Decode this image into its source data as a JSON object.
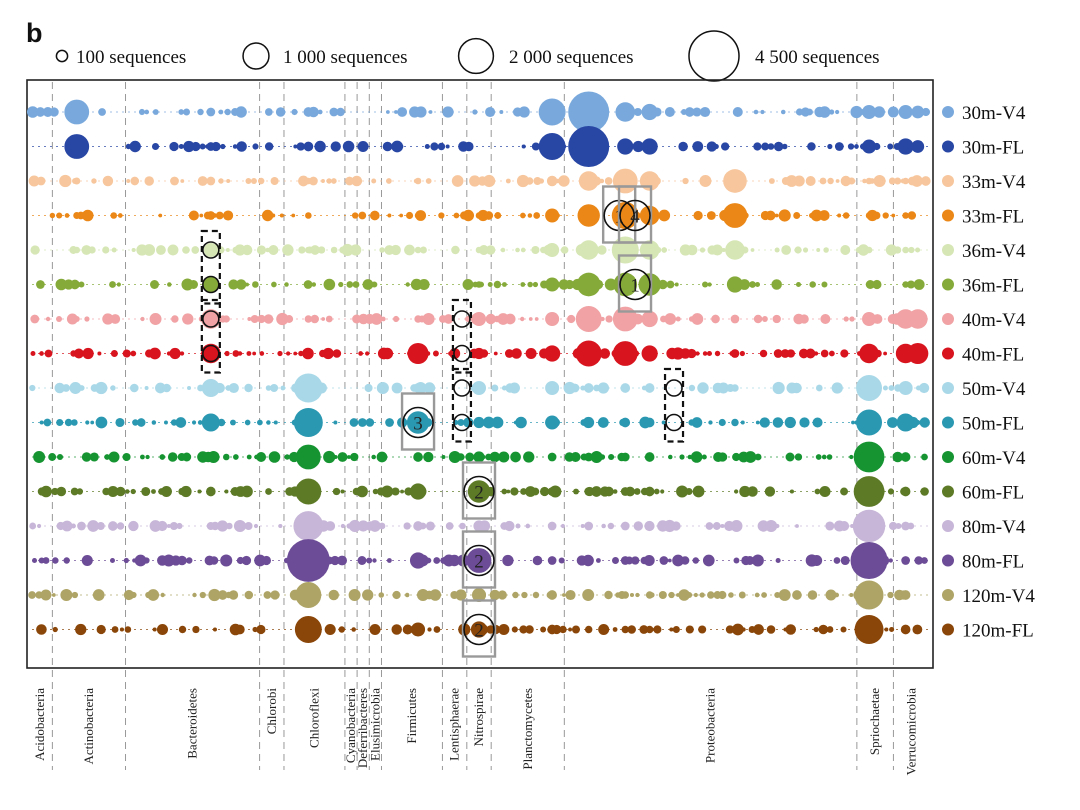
{
  "panel_label": "b",
  "size_legend": [
    {
      "label": "100 sequences",
      "count": 100
    },
    {
      "label": "1 000 sequences",
      "count": 1000
    },
    {
      "label": "2 000 sequences",
      "count": 2000
    },
    {
      "label": "4 500 sequences",
      "count": 4500
    }
  ],
  "chart_data": {
    "type": "scatter",
    "subtype": "bubble",
    "title": "",
    "size_unit": "sequences per OTU",
    "samples": [
      {
        "label": "30m-V4",
        "color": "#79a9dc"
      },
      {
        "label": "30m-FL",
        "color": "#2846a4"
      },
      {
        "label": "33m-V4",
        "color": "#f7c69c"
      },
      {
        "label": "33m-FL",
        "color": "#ea8716"
      },
      {
        "label": "36m-V4",
        "color": "#d6e6b4"
      },
      {
        "label": "36m-FL",
        "color": "#86aa3a"
      },
      {
        "label": "40m-V4",
        "color": "#f0a2a4"
      },
      {
        "label": "40m-FL",
        "color": "#d8141e"
      },
      {
        "label": "50m-V4",
        "color": "#a9d8e8"
      },
      {
        "label": "50m-FL",
        "color": "#2b98b2"
      },
      {
        "label": "60m-V4",
        "color": "#169432"
      },
      {
        "label": "60m-FL",
        "color": "#5d7a26"
      },
      {
        "label": "80m-V4",
        "color": "#c7b6d8"
      },
      {
        "label": "80m-FL",
        "color": "#6c4c96"
      },
      {
        "label": "120m-V4",
        "color": "#aea466"
      },
      {
        "label": "120m-FL",
        "color": "#8a4608"
      }
    ],
    "phyla": [
      {
        "name": "Acidobacteria",
        "x_range": [
          0,
          2
        ]
      },
      {
        "name": "Actinobacteria",
        "x_range": [
          2,
          8
        ]
      },
      {
        "name": "Bacteroidetes",
        "x_range": [
          8,
          19
        ]
      },
      {
        "name": "Chlorobi",
        "x_range": [
          19,
          21
        ]
      },
      {
        "name": "Chloroflexi",
        "x_range": [
          21,
          26
        ]
      },
      {
        "name": "Cyanobacteria",
        "x_range": [
          26,
          27
        ]
      },
      {
        "name": "Deferribacteres",
        "x_range": [
          27,
          28
        ]
      },
      {
        "name": "Elusimicrobia",
        "x_range": [
          28,
          29
        ]
      },
      {
        "name": "Firmicutes",
        "x_range": [
          29,
          34
        ]
      },
      {
        "name": "Lentisphaerae",
        "x_range": [
          34,
          36
        ]
      },
      {
        "name": "Nitrospirae",
        "x_range": [
          36,
          38
        ]
      },
      {
        "name": "Planctomycetes",
        "x_range": [
          38,
          44
        ]
      },
      {
        "name": "Proteobacteria",
        "x_range": [
          44,
          68
        ]
      },
      {
        "name": "Spriochaetae",
        "x_range": [
          68,
          71
        ]
      },
      {
        "name": "Verrucomicrobia",
        "x_range": [
          71,
          74
        ]
      }
    ],
    "x_range": [
      0,
      74
    ],
    "highlighted_otus": [
      {
        "column": 32,
        "samples": [
          "50m-FL"
        ],
        "label": "3",
        "box": "solid"
      },
      {
        "column": 37,
        "samples": [
          "60m-FL"
        ],
        "label": "2",
        "box": "solid"
      },
      {
        "column": 37,
        "samples": [
          "80m-FL"
        ],
        "label": "2",
        "box": "solid"
      },
      {
        "column": 37,
        "samples": [
          "120m-FL"
        ],
        "label": "2",
        "box": "solid"
      },
      {
        "column": 48.5,
        "samples": [
          "33m-FL"
        ],
        "label": "1",
        "box": "solid"
      },
      {
        "column": 49.8,
        "samples": [
          "33m-FL"
        ],
        "label": "4",
        "box": "solid"
      },
      {
        "column": 49.8,
        "samples": [
          "36m-FL"
        ],
        "label": "1",
        "box": "solid"
      },
      {
        "column": 15,
        "samples": [
          "36m-V4",
          "36m-FL"
        ],
        "label": "",
        "box": "dashed"
      },
      {
        "column": 15,
        "samples": [
          "40m-V4",
          "40m-FL"
        ],
        "label": "",
        "box": "dashed"
      },
      {
        "column": 35.6,
        "samples": [
          "40m-V4",
          "40m-FL"
        ],
        "label": "",
        "box": "dashed"
      },
      {
        "column": 35.6,
        "samples": [
          "50m-V4",
          "50m-FL"
        ],
        "label": "",
        "box": "dashed"
      },
      {
        "column": 53,
        "samples": [
          "50m-V4",
          "50m-FL"
        ],
        "label": "",
        "box": "dashed"
      }
    ],
    "grid": "dashed vertical separators between phyla"
  }
}
